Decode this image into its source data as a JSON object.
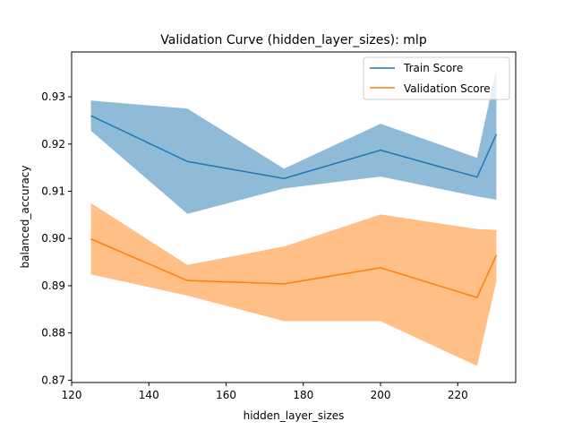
{
  "chart_data": {
    "type": "line",
    "title": "Validation Curve (hidden_layer_sizes): mlp",
    "xlabel": "hidden_layer_sizes",
    "ylabel": "balanced_accuracy",
    "xlim": [
      120,
      235
    ],
    "ylim": [
      0.8695,
      0.9395
    ],
    "xticks": [
      120,
      140,
      160,
      180,
      200,
      220
    ],
    "yticks": [
      0.87,
      0.88,
      0.89,
      0.9,
      0.91,
      0.92,
      0.93
    ],
    "ytick_labels": [
      "0.87",
      "0.88",
      "0.89",
      "0.90",
      "0.91",
      "0.92",
      "0.93"
    ],
    "grid": false,
    "legend_position": "upper right",
    "x": [
      125,
      150,
      175,
      200,
      225,
      230
    ],
    "series": [
      {
        "name": "Train Score",
        "color": "#1f77b4",
        "band_color": "#1f77b4",
        "values": [
          0.926,
          0.9163,
          0.9127,
          0.9187,
          0.913,
          0.9221
        ],
        "lower": [
          0.9228,
          0.9052,
          0.9106,
          0.9131,
          0.9089,
          0.9082
        ],
        "upper": [
          0.9292,
          0.9275,
          0.9148,
          0.9243,
          0.9171,
          0.936
        ]
      },
      {
        "name": "Validation Score",
        "color": "#ff7f0e",
        "band_color": "#ff7f0e",
        "values": [
          0.8999,
          0.8911,
          0.8904,
          0.8938,
          0.8875,
          0.8965
        ],
        "lower": [
          0.8924,
          0.8879,
          0.8825,
          0.8825,
          0.873,
          0.891
        ],
        "upper": [
          0.9075,
          0.8944,
          0.8983,
          0.9051,
          0.902,
          0.9018
        ]
      }
    ]
  }
}
